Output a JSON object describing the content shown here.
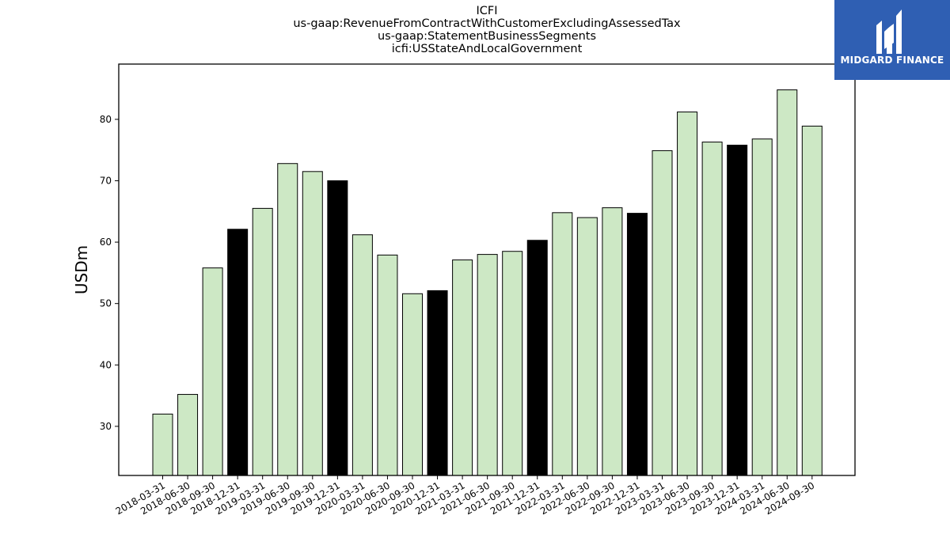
{
  "chart_data": {
    "type": "bar",
    "title": [
      "ICFI",
      "us-gaap:RevenueFromContractWithCustomerExcludingAssessedTax",
      "us-gaap:StatementBusinessSegments",
      "icfi:USStateAndLocalGovernment"
    ],
    "xlabel": "",
    "ylabel": "USDm",
    "ylim": [
      22,
      89
    ],
    "yticks": [
      30,
      40,
      50,
      60,
      70,
      80
    ],
    "categories": [
      "2018-03-31",
      "2018-06-30",
      "2018-09-30",
      "2018-12-31",
      "2019-03-31",
      "2019-06-30",
      "2019-09-30",
      "2019-12-31",
      "2020-03-31",
      "2020-06-30",
      "2020-09-30",
      "2020-12-31",
      "2021-03-31",
      "2021-06-30",
      "2021-09-30",
      "2021-12-31",
      "2022-03-31",
      "2022-06-30",
      "2022-09-30",
      "2022-12-31",
      "2023-03-31",
      "2023-06-30",
      "2023-09-30",
      "2023-12-31",
      "2024-03-31",
      "2024-06-30",
      "2024-09-30"
    ],
    "values": [
      32.0,
      35.2,
      55.8,
      62.1,
      65.5,
      72.8,
      71.5,
      70.0,
      61.2,
      57.9,
      51.6,
      52.1,
      57.1,
      58.0,
      58.5,
      60.3,
      64.8,
      64.0,
      65.6,
      64.7,
      74.9,
      81.2,
      76.3,
      75.8,
      76.8,
      84.8,
      78.9
    ],
    "bar_colors": [
      "#cde8c5",
      "#cde8c5",
      "#cde8c5",
      "#000000",
      "#cde8c5",
      "#cde8c5",
      "#cde8c5",
      "#000000",
      "#cde8c5",
      "#cde8c5",
      "#cde8c5",
      "#000000",
      "#cde8c5",
      "#cde8c5",
      "#cde8c5",
      "#000000",
      "#cde8c5",
      "#cde8c5",
      "#cde8c5",
      "#000000",
      "#cde8c5",
      "#cde8c5",
      "#cde8c5",
      "#000000",
      "#cde8c5",
      "#cde8c5",
      "#cde8c5"
    ],
    "grid": false,
    "legend": "none"
  },
  "logo": {
    "text": "MIDGARD FINANCE",
    "background": "#2f5fb3"
  }
}
